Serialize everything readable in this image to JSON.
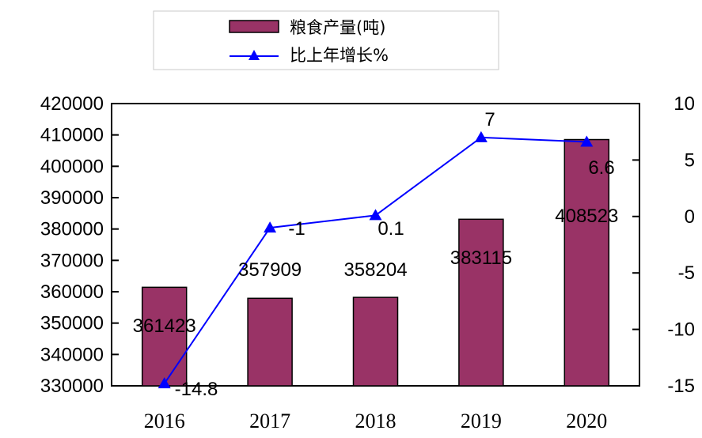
{
  "chart_data": {
    "type": "bar",
    "categories": [
      "2016",
      "2017",
      "2018",
      "2019",
      "2020"
    ],
    "series": [
      {
        "name": "粮食产量(吨)",
        "type": "bar",
        "axis": "left",
        "values": [
          361423,
          357909,
          358204,
          383115,
          408523
        ],
        "labels": [
          "361423",
          "357909",
          "358204",
          "383115",
          "408523"
        ]
      },
      {
        "name": "比上年增长%",
        "type": "line",
        "axis": "right",
        "values": [
          -14.8,
          -1,
          0.1,
          7,
          6.6
        ],
        "labels": [
          "-14.8",
          "-1",
          "0.1",
          "7",
          "6.6"
        ]
      }
    ],
    "y_left": {
      "range": [
        330000,
        420000
      ],
      "ticks": [
        "330000",
        "340000",
        "350000",
        "360000",
        "370000",
        "380000",
        "390000",
        "400000",
        "410000",
        "420000"
      ]
    },
    "y_right": {
      "range": [
        -15,
        10
      ],
      "ticks": [
        "-15",
        "-10",
        "-5",
        "0",
        "5",
        "10"
      ]
    },
    "grid": false,
    "legend": "top",
    "colors": {
      "bar": "#993366",
      "line": "#0000ff"
    }
  }
}
